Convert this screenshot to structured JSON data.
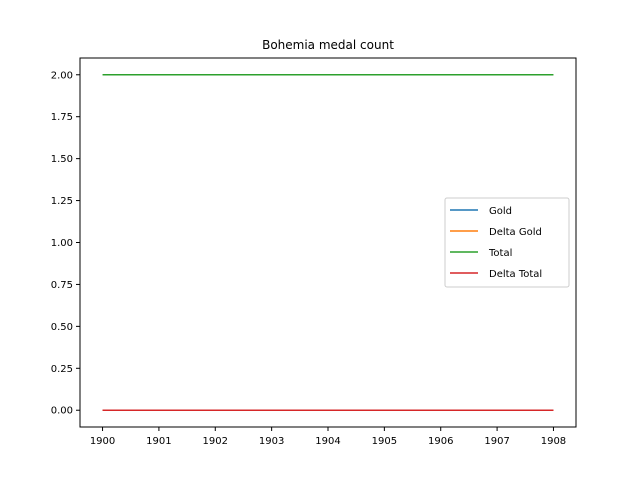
{
  "chart_data": {
    "type": "line",
    "title": "Bohemia medal count",
    "xlabel": "",
    "ylabel": "",
    "x": [
      1900,
      1908
    ],
    "xticks": [
      "1900",
      "1901",
      "1902",
      "1903",
      "1904",
      "1905",
      "1906",
      "1907",
      "1908"
    ],
    "yticks": [
      "0.00",
      "0.25",
      "0.50",
      "0.75",
      "1.00",
      "1.25",
      "1.50",
      "1.75",
      "2.00"
    ],
    "xlim": [
      1899.6,
      1908.4
    ],
    "ylim": [
      -0.1,
      2.1
    ],
    "grid": false,
    "legend_position": "center-right",
    "series": [
      {
        "name": "Gold",
        "values": [
          0,
          0
        ],
        "color": "#1f77b4"
      },
      {
        "name": "Delta Gold",
        "values": [
          0,
          0
        ],
        "color": "#ff7f0e"
      },
      {
        "name": "Total",
        "values": [
          2,
          2
        ],
        "color": "#2ca02c"
      },
      {
        "name": "Delta Total",
        "values": [
          0,
          0
        ],
        "color": "#d62728"
      }
    ]
  }
}
